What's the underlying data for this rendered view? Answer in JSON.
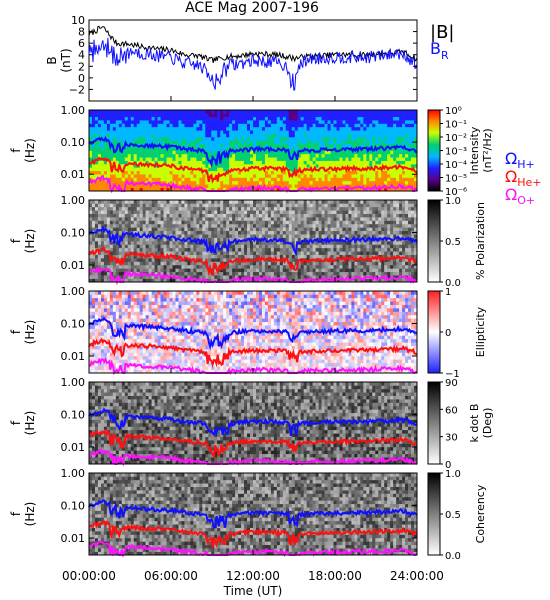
{
  "title": "ACE Mag 2007-196",
  "x_axis": {
    "label": "Time (UT)",
    "ticks": [
      "00:00:00",
      "06:00:00",
      "12:00:00",
      "18:00:00",
      "24:00:00"
    ],
    "range_hours": [
      0,
      24
    ]
  },
  "legend_top": {
    "btot_label": "|B|",
    "br_label": "B",
    "br_subscript": "R",
    "btot_color": "#000000",
    "br_color": "#1010ff"
  },
  "legend_gyro": {
    "h_label": "Ω",
    "h_subscript": "H+",
    "h_color": "#1010ff",
    "he_label": "Ω",
    "he_subscript": "He+",
    "he_color": "#ff1010",
    "o_label": "Ω",
    "o_subscript": "O+",
    "o_color": "#ff10ff"
  },
  "freq_axis": {
    "label": "f",
    "unit": "(Hz)",
    "ticks": [
      "1.00",
      "0.10",
      "0.01"
    ]
  },
  "chart_data": [
    {
      "type": "line",
      "panel": "magnetic-field",
      "ylabel": "B",
      "yunit": "(nT)",
      "ylim": [
        -4,
        10
      ],
      "yticks": [
        "10",
        "8",
        "6",
        "4",
        "2",
        "0",
        "−2"
      ],
      "x_hours": [
        0,
        1,
        2,
        3,
        4,
        5,
        6,
        7,
        8,
        9,
        10,
        11,
        12,
        13,
        14,
        15,
        16,
        17,
        18,
        19,
        20,
        21,
        22,
        23,
        24
      ],
      "series": [
        {
          "name": "|B|",
          "color": "#000000",
          "values": [
            7.5,
            8.8,
            6.0,
            5.8,
            5.3,
            5.0,
            4.8,
            4.0,
            3.8,
            3.0,
            3.6,
            3.8,
            4.2,
            4.1,
            3.9,
            3.4,
            3.7,
            3.8,
            4.0,
            4.0,
            3.9,
            4.1,
            4.3,
            4.5,
            3.2
          ]
        },
        {
          "name": "B_R",
          "color": "#1010ff",
          "values": [
            4.5,
            5.8,
            3.2,
            4.7,
            4.2,
            3.8,
            3.5,
            2.5,
            2.2,
            0.5,
            2.2,
            2.4,
            3.0,
            2.8,
            2.5,
            1.0,
            3.3,
            3.4,
            3.6,
            3.6,
            3.5,
            3.7,
            4.0,
            4.3,
            2.0
          ]
        }
      ]
    },
    {
      "type": "heatmap",
      "panel": "power-spectrum",
      "ylabel": "f",
      "yunit": "(Hz)",
      "yscale": "log",
      "ylim": [
        0.003,
        1.0
      ],
      "colorbar": {
        "label": "Intensity",
        "unit": "(nT²/Hz)",
        "ticks": [
          "10⁰",
          "10⁻¹",
          "10⁻²",
          "10⁻³",
          "10⁻⁴",
          "10⁻⁵",
          "10⁻⁶"
        ]
      }
    },
    {
      "type": "heatmap",
      "panel": "polarization",
      "ylabel": "f",
      "yunit": "(Hz)",
      "yscale": "log",
      "colorbar": {
        "label": "% Polarization",
        "ticks": [
          "1.0",
          "0.5",
          "0.0"
        ]
      }
    },
    {
      "type": "heatmap",
      "panel": "ellipticity",
      "ylabel": "f",
      "yunit": "(Hz)",
      "yscale": "log",
      "colorbar": {
        "label": "Ellipticity",
        "ticks": [
          "1",
          "0",
          "−1"
        ]
      }
    },
    {
      "type": "heatmap",
      "panel": "k-dot-b",
      "ylabel": "f",
      "yunit": "(Hz)",
      "yscale": "log",
      "colorbar": {
        "label": "k dot B",
        "unit": "(Deg)",
        "ticks": [
          "90",
          "60",
          "30",
          "0"
        ]
      }
    },
    {
      "type": "heatmap",
      "panel": "coherency",
      "ylabel": "f",
      "yunit": "(Hz)",
      "yscale": "log",
      "colorbar": {
        "label": "Coherency",
        "ticks": [
          "1.0",
          "0.5",
          "0.0"
        ]
      }
    },
    {
      "type": "line",
      "panel": "gyrofrequency-overlays",
      "yscale": "log",
      "x_hours": [
        0,
        1,
        2,
        3,
        4,
        5,
        6,
        7,
        8,
        9,
        10,
        11,
        12,
        13,
        14,
        15,
        16,
        17,
        18,
        19,
        20,
        21,
        22,
        23,
        24
      ],
      "series": [
        {
          "name": "Ω H+",
          "color": "#1010ff",
          "values": [
            0.09,
            0.13,
            0.09,
            0.085,
            0.08,
            0.075,
            0.07,
            0.06,
            0.055,
            0.045,
            0.05,
            0.055,
            0.06,
            0.06,
            0.058,
            0.05,
            0.055,
            0.057,
            0.058,
            0.06,
            0.06,
            0.062,
            0.065,
            0.068,
            0.05
          ]
        },
        {
          "name": "Ω He+",
          "color": "#ff1010",
          "values": [
            0.022,
            0.03,
            0.022,
            0.021,
            0.02,
            0.019,
            0.018,
            0.015,
            0.014,
            0.011,
            0.013,
            0.014,
            0.015,
            0.015,
            0.0145,
            0.0125,
            0.014,
            0.0143,
            0.0145,
            0.015,
            0.015,
            0.0155,
            0.016,
            0.017,
            0.0125
          ]
        },
        {
          "name": "Ω O+",
          "color": "#ff10ff",
          "values": [
            0.0056,
            0.0075,
            0.0055,
            0.0053,
            0.005,
            0.0048,
            0.0045,
            0.0038,
            0.0035,
            0.003,
            0.0033,
            0.0035,
            0.0038,
            0.0038,
            0.0036,
            0.0031,
            0.0035,
            0.0036,
            0.0036,
            0.0038,
            0.0038,
            0.0039,
            0.004,
            0.0042,
            0.0031
          ]
        }
      ]
    }
  ]
}
